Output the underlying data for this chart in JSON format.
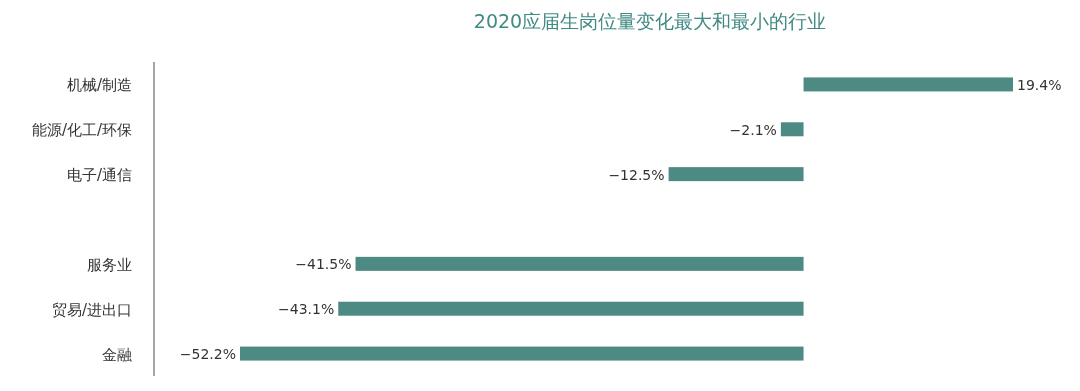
{
  "chart_data": {
    "type": "bar",
    "orientation": "horizontal",
    "title": "2020应届生岗位量变化最大和最小的行业",
    "categories": [
      "机械/制造",
      "能源/化工/环保",
      "电子/通信",
      null,
      "服务业",
      "贸易/进出口",
      "金融"
    ],
    "values": [
      19.4,
      -2.1,
      -12.5,
      null,
      -41.5,
      -43.1,
      -52.2
    ],
    "value_labels": [
      "19.4%",
      "−2.1%",
      "−12.5%",
      null,
      "−41.5%",
      "−43.1%",
      "−52.2%"
    ],
    "color": "#4e8a84"
  }
}
